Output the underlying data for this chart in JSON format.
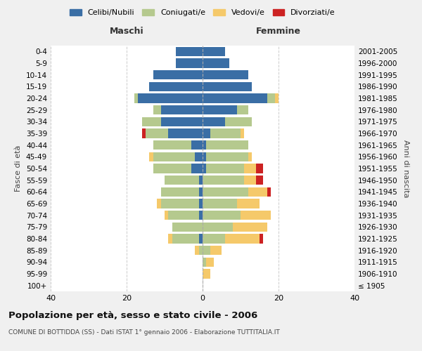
{
  "age_groups": [
    "100+",
    "95-99",
    "90-94",
    "85-89",
    "80-84",
    "75-79",
    "70-74",
    "65-69",
    "60-64",
    "55-59",
    "50-54",
    "45-49",
    "40-44",
    "35-39",
    "30-34",
    "25-29",
    "20-24",
    "15-19",
    "10-14",
    "5-9",
    "0-4"
  ],
  "birth_years": [
    "≤ 1905",
    "1906-1910",
    "1911-1915",
    "1916-1920",
    "1921-1925",
    "1926-1930",
    "1931-1935",
    "1936-1940",
    "1941-1945",
    "1946-1950",
    "1951-1955",
    "1956-1960",
    "1961-1965",
    "1966-1970",
    "1971-1975",
    "1976-1980",
    "1981-1985",
    "1986-1990",
    "1991-1995",
    "1996-2000",
    "2001-2005"
  ],
  "maschi": {
    "celibi": [
      0,
      0,
      0,
      0,
      1,
      0,
      1,
      1,
      1,
      1,
      3,
      2,
      3,
      9,
      11,
      11,
      17,
      14,
      13,
      7,
      7
    ],
    "coniugati": [
      0,
      0,
      0,
      1,
      7,
      8,
      8,
      10,
      10,
      9,
      10,
      11,
      10,
      6,
      5,
      2,
      1,
      0,
      0,
      0,
      0
    ],
    "vedovi": [
      0,
      0,
      0,
      1,
      1,
      0,
      1,
      1,
      0,
      0,
      0,
      1,
      0,
      0,
      0,
      0,
      0,
      0,
      0,
      0,
      0
    ],
    "divorziati": [
      0,
      0,
      0,
      0,
      0,
      0,
      0,
      0,
      0,
      0,
      0,
      0,
      0,
      1,
      0,
      0,
      0,
      0,
      0,
      0,
      0
    ]
  },
  "femmine": {
    "nubili": [
      0,
      0,
      0,
      0,
      0,
      0,
      0,
      0,
      0,
      0,
      1,
      1,
      1,
      2,
      6,
      9,
      17,
      13,
      12,
      7,
      6
    ],
    "coniugate": [
      0,
      0,
      1,
      2,
      6,
      8,
      10,
      9,
      12,
      11,
      10,
      11,
      11,
      8,
      7,
      3,
      2,
      0,
      0,
      0,
      0
    ],
    "vedove": [
      0,
      2,
      2,
      3,
      9,
      9,
      8,
      6,
      5,
      3,
      3,
      1,
      0,
      1,
      0,
      0,
      1,
      0,
      0,
      0,
      0
    ],
    "divorziate": [
      0,
      0,
      0,
      0,
      1,
      0,
      0,
      0,
      1,
      2,
      2,
      0,
      0,
      0,
      0,
      0,
      0,
      0,
      0,
      0,
      0
    ]
  },
  "colors": {
    "celibi": "#3A6EA5",
    "coniugati": "#B5C98E",
    "vedovi": "#F5C96A",
    "divorziati": "#CC2222"
  },
  "xlim": 40,
  "title": "Popolazione per età, sesso e stato civile - 2006",
  "subtitle": "COMUNE DI BOTTIDDA (SS) - Dati ISTAT 1° gennaio 2006 - Elaborazione TUTTITALIA.IT",
  "ylabel_left": "Fasce di età",
  "ylabel_right": "Anni di nascita",
  "xlabel_left": "Maschi",
  "xlabel_right": "Femmine",
  "bg_color": "#f0f0f0",
  "plot_bg_color": "#ffffff"
}
